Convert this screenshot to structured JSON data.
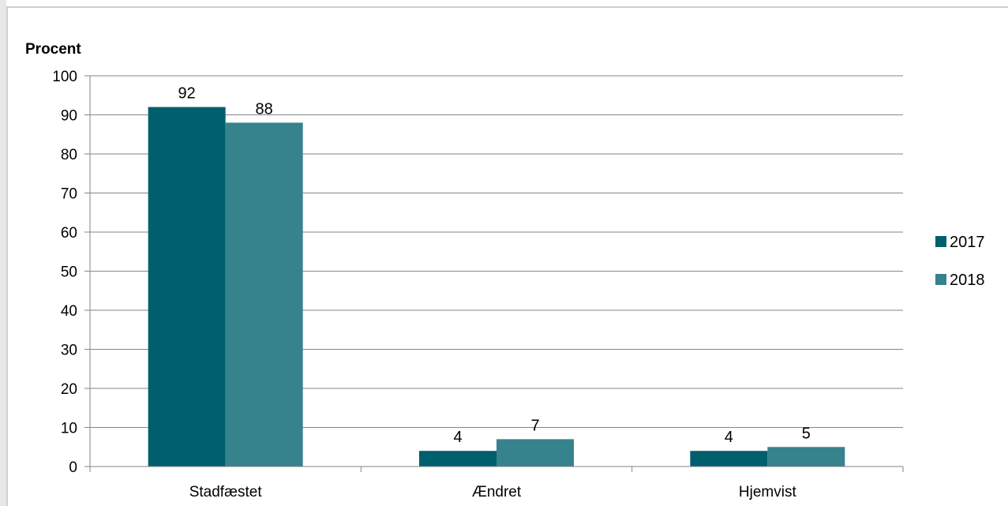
{
  "chart_data": {
    "type": "bar",
    "ylabel": "Procent",
    "ylim": [
      0,
      100
    ],
    "yticks": [
      0,
      10,
      20,
      30,
      40,
      50,
      60,
      70,
      80,
      90,
      100
    ],
    "grid": true,
    "legend_position": "right",
    "categories": [
      "Stadfæstet",
      "Ændret",
      "Hjemvist"
    ],
    "series": [
      {
        "name": "2017",
        "values": [
          92,
          4,
          4
        ],
        "labels": [
          "92",
          "4",
          "4"
        ],
        "color": "#005F6E"
      },
      {
        "name": "2018",
        "values": [
          88,
          7,
          5
        ],
        "labels": [
          "88",
          "7",
          "5"
        ],
        "color": "#36828D"
      }
    ]
  }
}
